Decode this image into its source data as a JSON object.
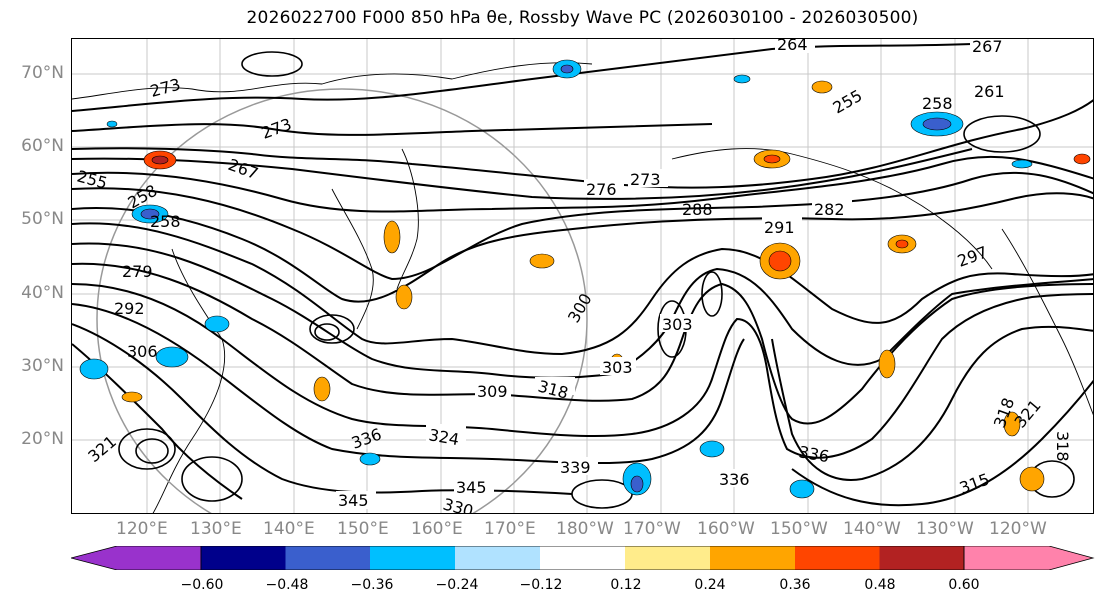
{
  "title": "2026022700 F000 850 hPa θe, Rossby Wave PC (2026030100 - 2026030500)",
  "latitude_labels": [
    "70°N",
    "60°N",
    "50°N",
    "40°N",
    "30°N",
    "20°N"
  ],
  "longitude_labels": [
    "120°E",
    "130°E",
    "140°E",
    "150°E",
    "160°E",
    "170°E",
    "180°W",
    "170°W",
    "160°W",
    "150°W",
    "140°W",
    "130°W",
    "120°W"
  ],
  "contour_labels": [
    "264",
    "267",
    "273",
    "261",
    "258",
    "258",
    "255",
    "267",
    "273",
    "276",
    "273",
    "282",
    "291",
    "288",
    "255",
    "258",
    "279",
    "292",
    "306",
    "300",
    "303",
    "303",
    "309",
    "318",
    "324",
    "336",
    "339",
    "345",
    "345",
    "330",
    "336",
    "336",
    "315",
    "318",
    "318",
    "321",
    "297",
    "321"
  ],
  "colorbar": {
    "ticks": [
      "−0.60",
      "−0.48",
      "−0.36",
      "−0.24",
      "−0.12",
      "0.12",
      "0.24",
      "0.36",
      "0.48",
      "0.60"
    ],
    "colors": [
      "#9932cc",
      "#00008b",
      "#3a5fcd",
      "#00bfff",
      "#b0e2ff",
      "#ffffff",
      "#ffec8b",
      "#ffa500",
      "#ff4500",
      "#b22222",
      "#ff82ab"
    ]
  }
}
